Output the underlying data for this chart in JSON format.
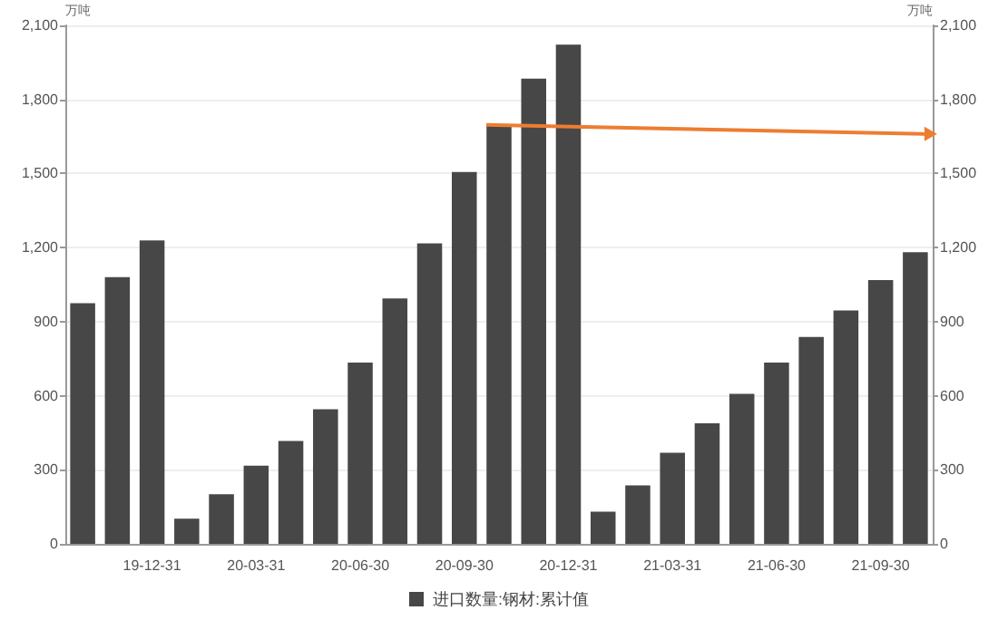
{
  "chart_data": {
    "type": "bar",
    "ylabel": "万吨",
    "y2label": "万吨",
    "categories": [
      null,
      null,
      "19-12-31",
      null,
      null,
      "20-03-31",
      null,
      null,
      "20-06-30",
      null,
      null,
      "20-09-30",
      null,
      null,
      "20-12-31",
      null,
      null,
      "21-03-31",
      null,
      null,
      "21-06-30",
      null,
      null,
      "21-09-30",
      null
    ],
    "series": [
      {
        "name": "进口数量:钢材:累计值",
        "color": "#474747",
        "values": [
          975,
          1080,
          1229,
          102,
          201,
          317,
          417,
          545,
          734,
          994,
          1217,
          1506,
          1697,
          1884,
          2022,
          130,
          237,
          369,
          488,
          608,
          734,
          838,
          945,
          1068,
          1181
        ]
      }
    ],
    "ylim": [
      0,
      2100
    ],
    "yticks": [
      0,
      300,
      600,
      900,
      {
        "value": 1200,
        "label": "1,200"
      },
      {
        "value": 1500,
        "label": "1,500"
      },
      {
        "value": 1800,
        "label": "1,800"
      },
      {
        "value": 2100,
        "label": "2,100"
      }
    ],
    "y2lim": [
      0,
      2100
    ],
    "y2ticks": [
      0,
      300,
      600,
      900,
      {
        "value": 1200,
        "label": "1,200"
      },
      {
        "value": 1500,
        "label": "1,500"
      },
      {
        "value": 1800,
        "label": "1,800"
      },
      {
        "value": 2100,
        "label": "2,100"
      }
    ],
    "grid": "y",
    "legend": "bottom"
  }
}
